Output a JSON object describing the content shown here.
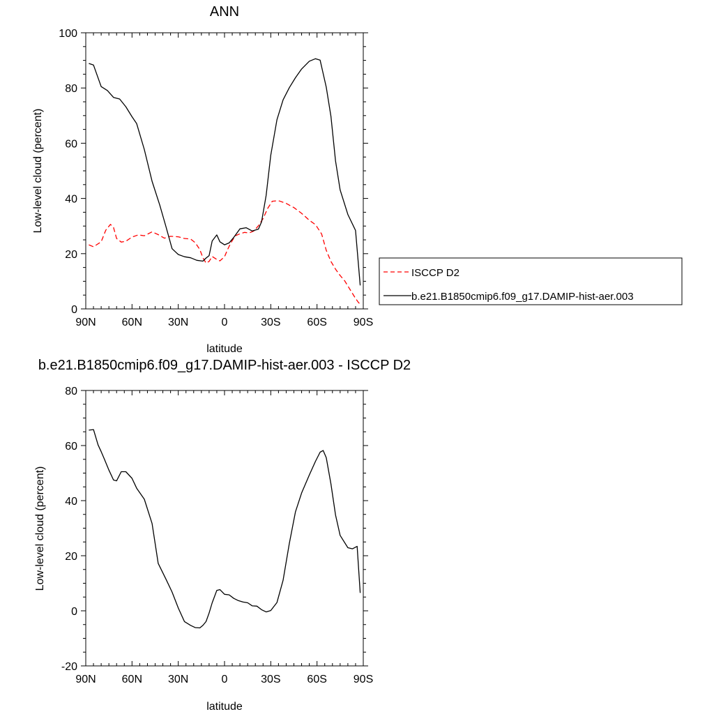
{
  "chart_data": [
    {
      "type": "line",
      "title": "ANN",
      "xlabel": "latitude",
      "ylabel": "Low-level cloud (percent)",
      "xlim": [
        90,
        -90
      ],
      "ylim": [
        0,
        100
      ],
      "xticks": [
        90,
        60,
        30,
        0,
        -30,
        -60,
        -90
      ],
      "xtick_labels": [
        "90N",
        "60N",
        "30N",
        "0",
        "30S",
        "60S",
        "90S"
      ],
      "yticks": [
        0,
        20,
        40,
        60,
        80,
        100
      ],
      "ytick_labels": [
        "0",
        "20",
        "40",
        "60",
        "80",
        "100"
      ],
      "legend_position": "right",
      "series": [
        {
          "name": "ISCCP D2",
          "color": "#ff0000",
          "dash": "dashed",
          "x": [
            88,
            85,
            80,
            77,
            74,
            72,
            70,
            67,
            64,
            60,
            56,
            52,
            47,
            43,
            39,
            35,
            30,
            26,
            22,
            19,
            16,
            14,
            12,
            10,
            8,
            5,
            3,
            0,
            -2,
            -4,
            -7,
            -10,
            -13,
            -16,
            -19,
            -22,
            -25,
            -28,
            -31,
            -35,
            -40,
            -45,
            -50,
            -55,
            -59,
            -63,
            -66,
            -69,
            -72,
            -75,
            -78,
            -82,
            -85,
            -87,
            -89
          ],
          "y": [
            23.2,
            22.5,
            24.3,
            28.5,
            30.6,
            29.5,
            25.5,
            24.2,
            24.5,
            26,
            26.8,
            26.5,
            27.9,
            26.9,
            25.6,
            26.3,
            26.1,
            25.5,
            25.3,
            24,
            21.5,
            18.5,
            16.6,
            17.2,
            19,
            17.9,
            17.4,
            18.9,
            21.5,
            23.8,
            26.5,
            27.2,
            27.7,
            27.5,
            28.2,
            30.1,
            32.7,
            36.4,
            39,
            39.2,
            38.2,
            36.7,
            34.6,
            32.1,
            30.5,
            27.1,
            21.2,
            17.2,
            14.4,
            12.1,
            10.1,
            6.5,
            3.8,
            2.2,
            1.5
          ]
        },
        {
          "name": "b.e21.B1850cmip6.f09_g17.DAMIP-hist-aer.003",
          "color": "#000000",
          "dash": "solid",
          "x": [
            88,
            85,
            80,
            76,
            72,
            68,
            64,
            60,
            57,
            52,
            47,
            42,
            38,
            34,
            30,
            26,
            22,
            18,
            14,
            12,
            10,
            8,
            5,
            3,
            0,
            -3,
            -6,
            -10,
            -14,
            -18,
            -22,
            -24,
            -27,
            -30,
            -34,
            -38,
            -42,
            -46,
            -50,
            -55,
            -59,
            -62,
            -64,
            -66,
            -69,
            -72,
            -75,
            -80,
            -85,
            -88
          ],
          "y": [
            88.9,
            88.3,
            80.5,
            79.1,
            76.6,
            76,
            73.2,
            69.6,
            67.1,
            57.7,
            46.2,
            37.6,
            29.8,
            21.8,
            19.7,
            18.9,
            18.5,
            17.6,
            17.3,
            18.4,
            19.3,
            24.6,
            26.8,
            24.3,
            23.2,
            23.9,
            25.9,
            29,
            29.4,
            28.2,
            28.9,
            31.5,
            41.1,
            55.6,
            68.5,
            75.7,
            80.1,
            83.7,
            86.9,
            89.7,
            90.6,
            90.1,
            85.2,
            80.3,
            69.8,
            53.6,
            43.1,
            34.2,
            28.4,
            8.5
          ]
        }
      ]
    },
    {
      "type": "line",
      "title": "b.e21.B1850cmip6.f09_g17.DAMIP-hist-aer.003 - ISCCP D2",
      "xlabel": "latitude",
      "ylabel": "Low-level cloud (percent)",
      "xlim": [
        90,
        -90
      ],
      "ylim": [
        -20,
        80
      ],
      "xticks": [
        90,
        60,
        30,
        0,
        -30,
        -60,
        -90
      ],
      "xtick_labels": [
        "90N",
        "60N",
        "30N",
        "0",
        "30S",
        "60S",
        "90S"
      ],
      "yticks": [
        -20,
        0,
        20,
        40,
        60,
        80
      ],
      "ytick_labels": [
        "-20",
        "0",
        "20",
        "40",
        "60",
        "80"
      ],
      "series": [
        {
          "color": "#000000",
          "dash": "solid",
          "x": [
            88,
            85,
            82,
            80,
            78,
            75,
            72,
            70,
            67,
            64,
            60,
            57,
            52,
            47,
            43,
            38,
            34,
            30,
            26,
            22,
            19,
            16,
            14,
            12,
            10,
            8,
            5,
            3,
            0,
            -3,
            -6,
            -9,
            -12,
            -15,
            -18,
            -21,
            -24,
            -27,
            -30,
            -34,
            -38,
            -42,
            -46,
            -50,
            -55,
            -59,
            -62,
            -64,
            -66,
            -69,
            -72,
            -75,
            -80,
            -83,
            -86,
            -88
          ],
          "y": [
            65.6,
            65.8,
            60.2,
            57.8,
            55.2,
            51.1,
            47.5,
            47.2,
            50.5,
            50.5,
            48.1,
            44.5,
            40.5,
            31.7,
            17.2,
            11.5,
            6.8,
            1,
            -3.9,
            -5.3,
            -6.1,
            -6.2,
            -5.3,
            -3.9,
            -0.8,
            2.9,
            7.4,
            7.7,
            6,
            5.8,
            4.5,
            3.7,
            3.2,
            2.9,
            1.8,
            1.7,
            0.4,
            -0.4,
            0.1,
            3,
            11.1,
            24.4,
            35.9,
            42.8,
            49.3,
            54.3,
            57.6,
            58.2,
            55.6,
            46.1,
            34.8,
            27.4,
            22.9,
            22.5,
            23.4,
            6.5
          ]
        }
      ]
    }
  ]
}
